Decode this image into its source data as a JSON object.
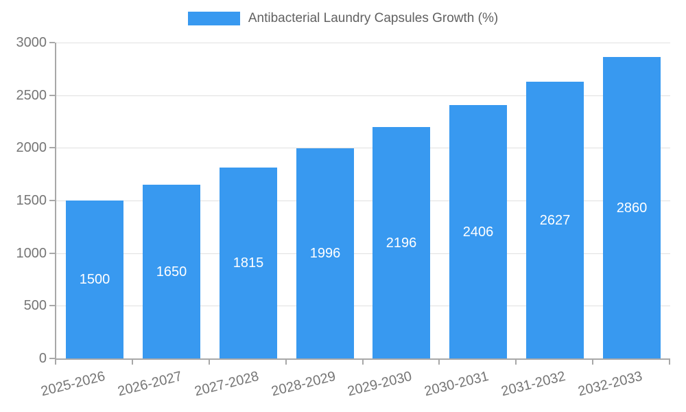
{
  "legend": {
    "position": "top",
    "label": "Antibacterial Laundry Capsules Growth (%)"
  },
  "chart_data": {
    "type": "bar",
    "categories": [
      "2025-2026",
      "2026-2027",
      "2027-2028",
      "2028-2029",
      "2029-2030",
      "2030-2031",
      "2031-2032",
      "2032-2033"
    ],
    "series": [
      {
        "name": "Antibacterial Laundry Capsules Growth (%)",
        "values": [
          1500,
          1650,
          1815,
          1996,
          2196,
          2406,
          2627,
          2860
        ],
        "color": "#3899f0"
      }
    ],
    "title": "",
    "xlabel": "",
    "ylabel": "",
    "ylim": [
      0,
      3000
    ],
    "yticks": [
      0,
      500,
      1000,
      1500,
      2000,
      2500,
      3000
    ],
    "grid": true,
    "legend_position": "top",
    "value_labels": "inside-center",
    "value_label_color": "#ffffff"
  },
  "colors": {
    "bar": "#3899f0",
    "grid": "#e0e0e0",
    "axis": "#a8a8a8",
    "tick_text": "#757575",
    "title_text": "#616161",
    "background": "#ffffff"
  }
}
